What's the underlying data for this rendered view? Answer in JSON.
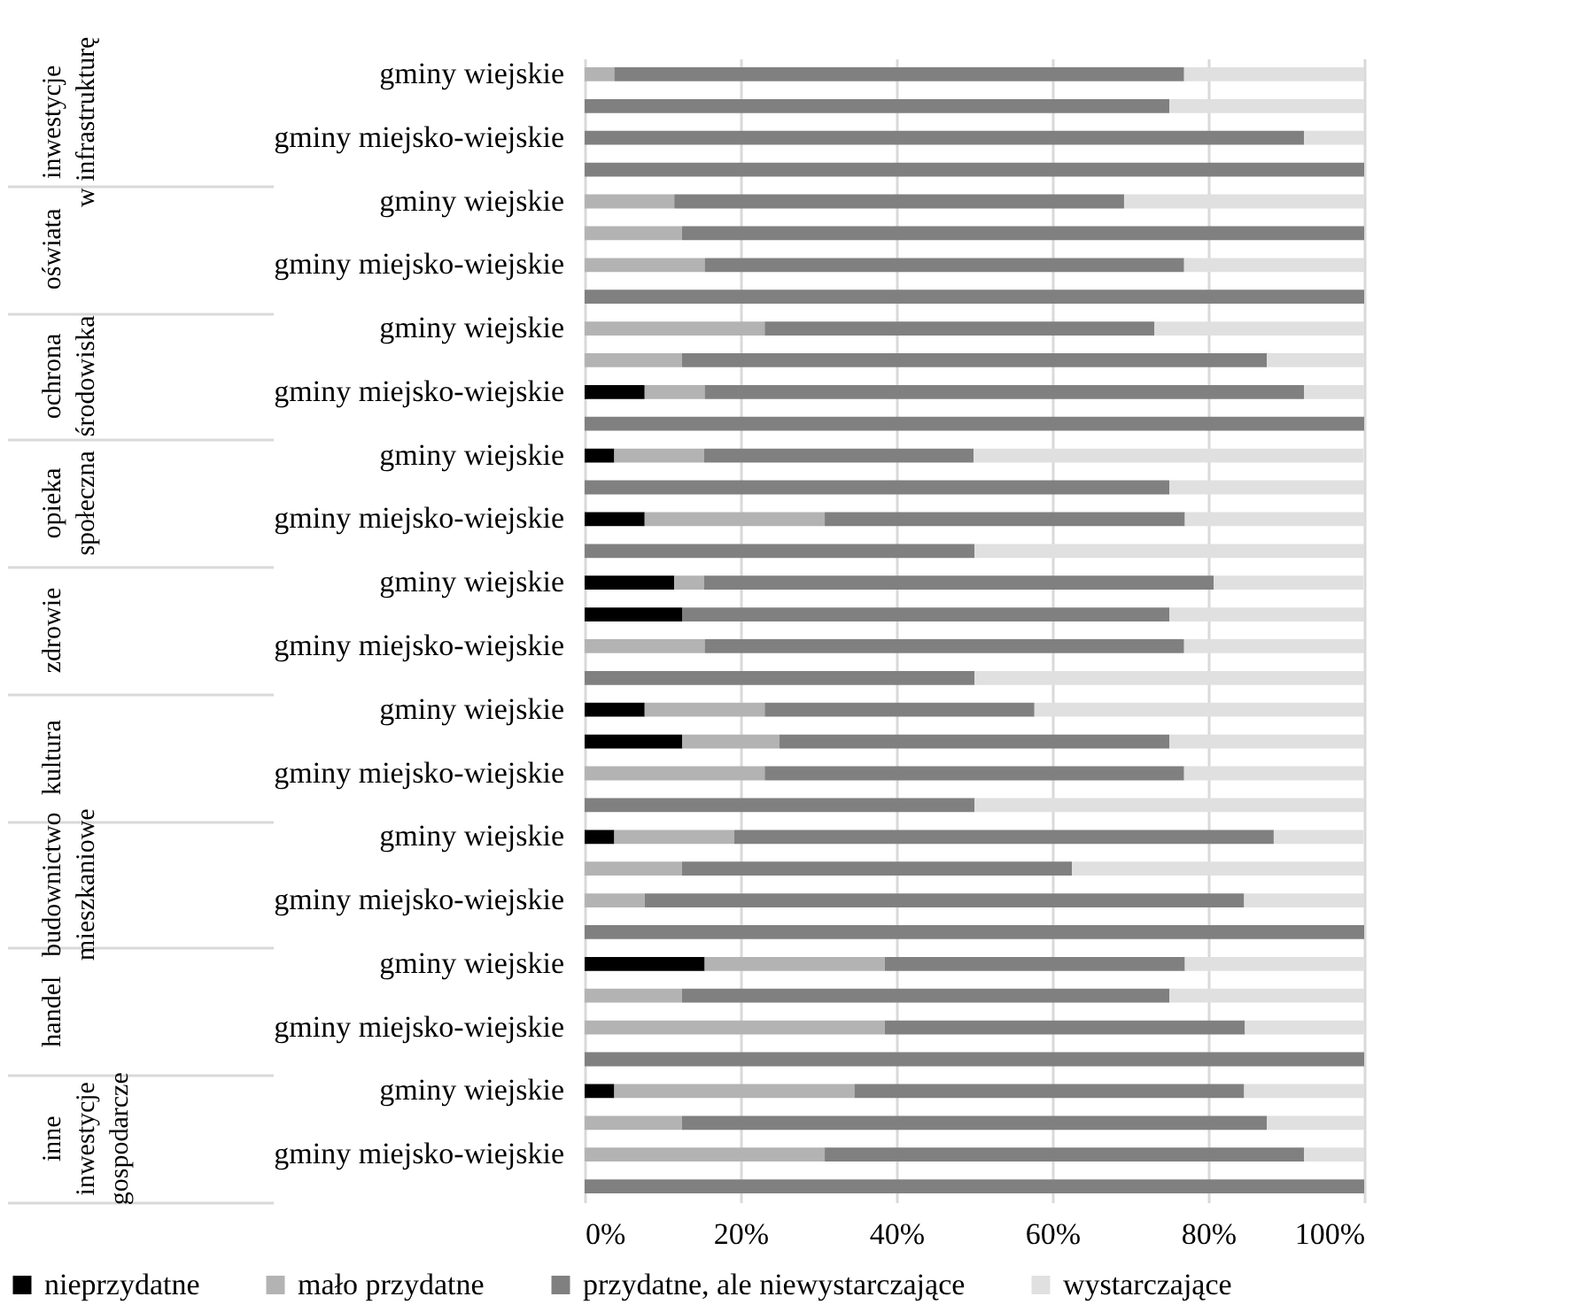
{
  "chart_data": {
    "type": "bar",
    "orientation": "horizontal",
    "stacked": true,
    "categories": [
      "gminy wiejskie",
      null,
      "gminy miejsko-wiejskie",
      null,
      "gminy wiejskie",
      null,
      "gminy miejsko-wiejskie",
      null,
      "gminy wiejskie",
      null,
      "gminy miejsko-wiejskie",
      null,
      "gminy wiejskie",
      null,
      "gminy miejsko-wiejskie",
      null,
      "gminy wiejskie",
      null,
      "gminy miejsko-wiejskie",
      null,
      "gminy wiejskie",
      null,
      "gminy miejsko-wiejskie",
      null,
      "gminy wiejskie",
      null,
      "gminy miejsko-wiejskie",
      null,
      "gminy wiejskie",
      null,
      "gminy miejsko-wiejskie",
      null,
      "gminy wiejskie",
      null,
      "gminy miejsko-wiejskie",
      null
    ],
    "series": [
      {
        "name": "nieprzydatne",
        "color": "#000000",
        "values": [
          0,
          0,
          0,
          0,
          0,
          0,
          0,
          0,
          0,
          0,
          7.7,
          0,
          3.8,
          0,
          7.7,
          0,
          11.5,
          12.5,
          0,
          0,
          7.7,
          12.5,
          0,
          0,
          3.8,
          0,
          0,
          0,
          15.4,
          0,
          0,
          0,
          3.8,
          0,
          0,
          0
        ]
      },
      {
        "name": "mało przydatne",
        "color": "#b3b3b3",
        "values": [
          3.8,
          0,
          0,
          0,
          11.5,
          12.5,
          15.4,
          0,
          23.1,
          12.5,
          7.7,
          0,
          11.5,
          0,
          23.1,
          0,
          3.8,
          0,
          15.4,
          0,
          15.4,
          12.5,
          23.1,
          0,
          15.4,
          12.5,
          7.7,
          0,
          23.1,
          12.5,
          38.5,
          0,
          30.8,
          12.5,
          30.8,
          0
        ]
      },
      {
        "name": "przydatne, ale niewystarczające",
        "color": "#808080",
        "values": [
          73.1,
          75,
          92.3,
          100,
          57.7,
          87.5,
          61.5,
          100,
          50,
          75,
          76.9,
          100,
          34.6,
          75,
          46.2,
          50,
          65.4,
          62.5,
          61.5,
          50,
          34.6,
          50,
          53.8,
          50,
          69.2,
          50,
          76.9,
          100,
          38.5,
          62.5,
          46.2,
          100,
          50,
          75,
          61.5,
          100
        ]
      },
      {
        "name": "wystarczające",
        "color": "#e0e0e0",
        "values": [
          23.1,
          25,
          7.7,
          0,
          30.8,
          0,
          23.1,
          0,
          26.9,
          12.5,
          7.7,
          0,
          50,
          25,
          23.1,
          50,
          19.2,
          25,
          23.1,
          50,
          42.3,
          25,
          23.1,
          50,
          11.5,
          37.5,
          15.4,
          0,
          23.1,
          25,
          15.4,
          0,
          15.4,
          12.5,
          7.7,
          0
        ]
      }
    ],
    "xlim": [
      0,
      100
    ],
    "xticks": [
      {
        "value": 0,
        "label": "0%"
      },
      {
        "value": 20,
        "label": "20%"
      },
      {
        "value": 40,
        "label": "40%"
      },
      {
        "value": 60,
        "label": "60%"
      },
      {
        "value": 80,
        "label": "80%"
      },
      {
        "value": 100,
        "label": "100%"
      }
    ],
    "grid": "x",
    "legend": "bottom",
    "annotations": [
      "inwestycje w infrastrukturę",
      "oświata",
      "ochrona środowiska",
      "opieka społeczna",
      "zdrowie",
      "kultura",
      "budownictwo mieszkaniowe",
      "handel",
      "inne inwestycje gospodarcze"
    ]
  }
}
